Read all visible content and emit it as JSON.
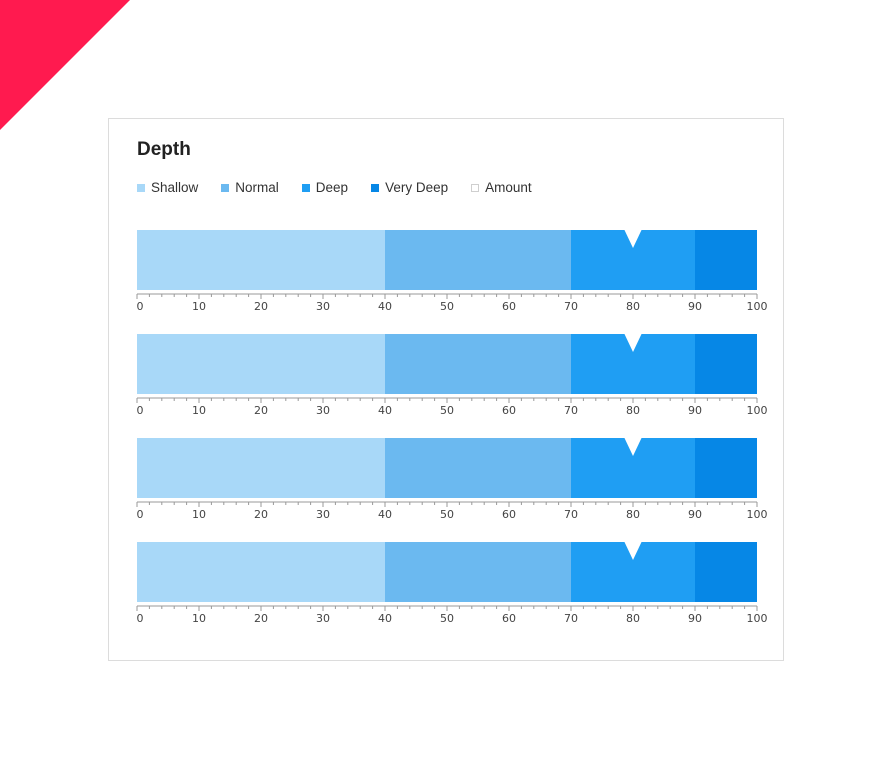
{
  "chart_data": {
    "type": "bullet",
    "title": "Depth",
    "xlim": [
      0,
      100
    ],
    "ticks": [
      0,
      10,
      20,
      30,
      40,
      50,
      60,
      70,
      80,
      90,
      100
    ],
    "legend": [
      {
        "name": "Shallow",
        "color": "#a8d8f8"
      },
      {
        "name": "Normal",
        "color": "#6bb9f0"
      },
      {
        "name": "Deep",
        "color": "#1f9ef3"
      },
      {
        "name": "Very Deep",
        "color": "#0687e6"
      },
      {
        "name": "Amount",
        "color": "#ffffff"
      }
    ],
    "ranges": [
      {
        "name": "Shallow",
        "from": 0,
        "to": 40
      },
      {
        "name": "Normal",
        "from": 40,
        "to": 70
      },
      {
        "name": "Deep",
        "from": 70,
        "to": 90
      },
      {
        "name": "Very Deep",
        "from": 90,
        "to": 100
      }
    ],
    "bullets": [
      {
        "value": 80
      },
      {
        "value": 80
      },
      {
        "value": 80
      },
      {
        "value": 80
      }
    ]
  },
  "colors": {
    "corner_accent": "#ff1a4f",
    "axis": "#999999",
    "marker": "#ffffff"
  }
}
